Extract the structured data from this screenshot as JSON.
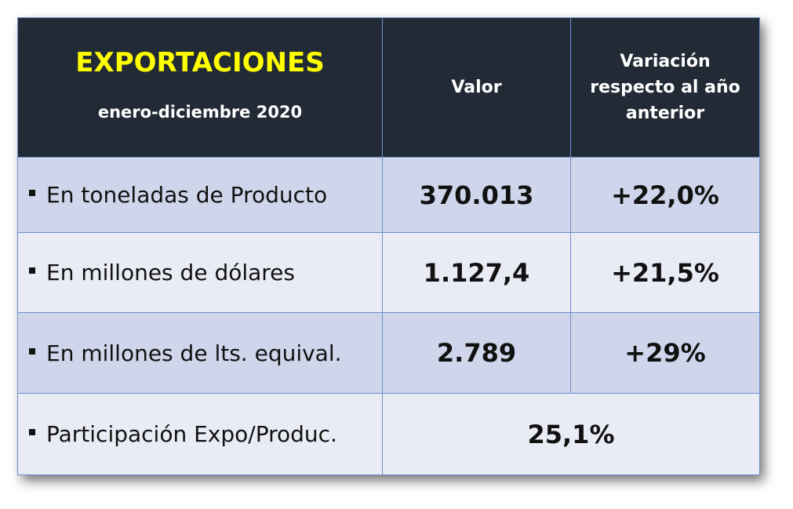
{
  "header": {
    "title": "EXPORTACIONES",
    "subtitle": "enero-diciembre 2020"
  },
  "columns": [
    "Valor",
    "Variación respecto al año anterior"
  ],
  "rows": [
    [
      "En toneladas de Producto",
      "370.013",
      "+22,0%"
    ],
    [
      "En millones de dólares",
      "1.127,4",
      "+21,5%"
    ],
    [
      "En millones de lts. equival.",
      "2.789",
      "+29%"
    ]
  ],
  "footer_row": [
    "Participación Expo/Produc.",
    "25,1%"
  ]
}
